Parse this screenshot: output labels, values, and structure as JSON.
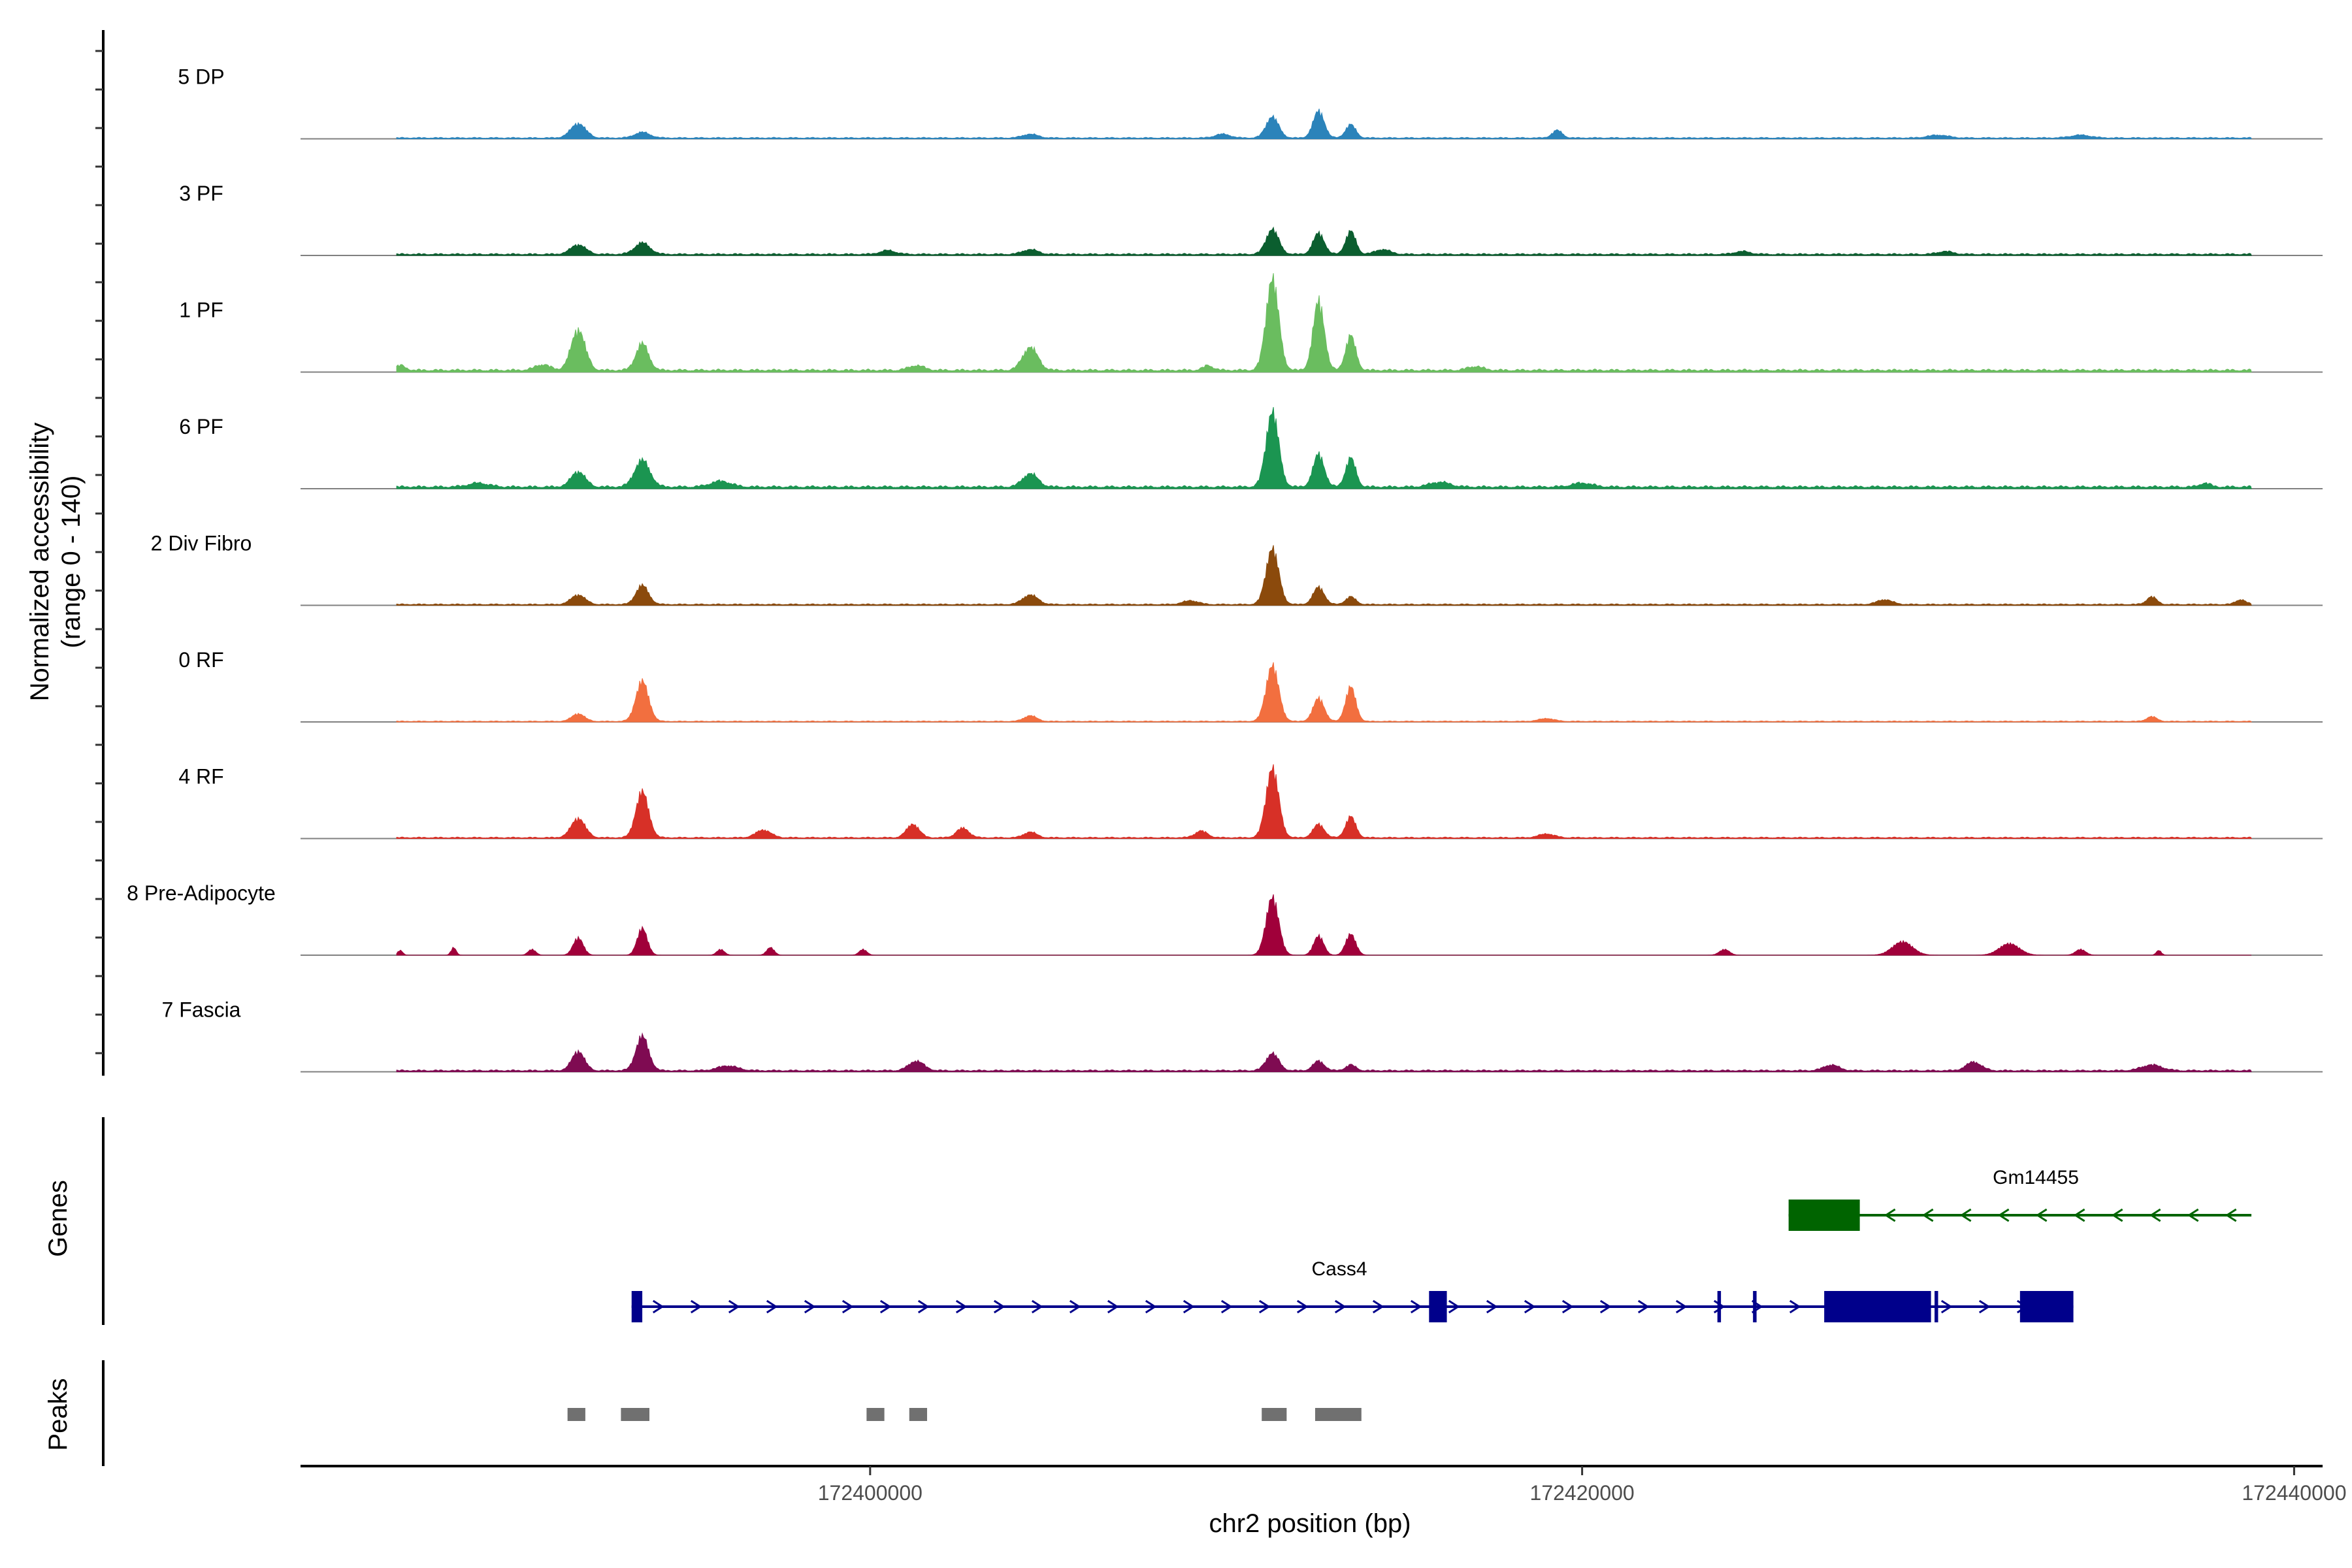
{
  "chart_data": {
    "type": "area",
    "ylabel_line1": "Normalized accessibility",
    "ylabel_line2": "(range 0 - 140)",
    "yrange": [
      0,
      140
    ],
    "xlabel": "chr2 position (bp)",
    "xlim": [
      172384000,
      172440800
    ],
    "x_ticks": [
      172400000,
      172420000,
      172440000
    ],
    "x_tick_labels": [
      "172400000",
      "172420000",
      "172440000"
    ],
    "track_range_bp": [
      172386700,
      172438800
    ],
    "series": [
      {
        "name": "5 DP",
        "color": "#2b83ba",
        "peaks": [
          [
            172391800,
            15,
            300
          ],
          [
            172411300,
            22,
            250
          ],
          [
            172412600,
            28,
            220
          ],
          [
            172413500,
            14,
            200
          ],
          [
            172393600,
            6,
            300
          ],
          [
            172419300,
            8,
            200
          ],
          [
            172404500,
            4,
            300
          ],
          [
            172409900,
            4,
            300
          ],
          [
            172430000,
            3,
            400
          ],
          [
            172434000,
            3,
            400
          ]
        ],
        "base": 1.5
      },
      {
        "name": "3 PF",
        "color": "#0b5e2f",
        "peaks": [
          [
            172391800,
            10,
            300
          ],
          [
            172393600,
            12,
            300
          ],
          [
            172411300,
            26,
            250
          ],
          [
            172412600,
            22,
            220
          ],
          [
            172413500,
            24,
            200
          ],
          [
            172404500,
            5,
            300
          ],
          [
            172400500,
            4,
            300
          ],
          [
            172414400,
            5,
            300
          ],
          [
            172424500,
            3,
            300
          ],
          [
            172430200,
            3,
            300
          ]
        ],
        "base": 2
      },
      {
        "name": "1 PF",
        "color": "#6abd5f",
        "peaks": [
          [
            172391800,
            42,
            280
          ],
          [
            172393600,
            28,
            250
          ],
          [
            172390800,
            6,
            300
          ],
          [
            172404500,
            24,
            300
          ],
          [
            172411300,
            95,
            250
          ],
          [
            172412600,
            72,
            220
          ],
          [
            172413500,
            36,
            200
          ],
          [
            172401300,
            5,
            300
          ],
          [
            172386800,
            5,
            200
          ],
          [
            172409500,
            5,
            200
          ],
          [
            172417000,
            4,
            300
          ]
        ],
        "base": 3
      },
      {
        "name": "6 PF",
        "color": "#1b9551",
        "peaks": [
          [
            172391800,
            16,
            280
          ],
          [
            172393600,
            28,
            300
          ],
          [
            172404500,
            14,
            300
          ],
          [
            172411300,
            78,
            250
          ],
          [
            172412600,
            34,
            220
          ],
          [
            172413500,
            30,
            200
          ],
          [
            172395800,
            6,
            400
          ],
          [
            172389000,
            4,
            400
          ],
          [
            172416000,
            5,
            400
          ],
          [
            172420000,
            4,
            400
          ],
          [
            172437500,
            4,
            200
          ]
        ],
        "base": 3
      },
      {
        "name": "2 Div Fibro",
        "color": "#8b4a0c",
        "peaks": [
          [
            172391800,
            10,
            280
          ],
          [
            172393600,
            20,
            250
          ],
          [
            172404500,
            10,
            300
          ],
          [
            172411300,
            58,
            250
          ],
          [
            172412600,
            18,
            220
          ],
          [
            172413500,
            8,
            200
          ],
          [
            172409000,
            4,
            300
          ],
          [
            172428500,
            5,
            300
          ],
          [
            172436000,
            8,
            200
          ],
          [
            172438500,
            5,
            200
          ]
        ],
        "base": 1.5
      },
      {
        "name": "0 RF",
        "color": "#f26f3f",
        "peaks": [
          [
            172391800,
            8,
            250
          ],
          [
            172393600,
            42,
            250
          ],
          [
            172404500,
            6,
            250
          ],
          [
            172411300,
            58,
            250
          ],
          [
            172412600,
            24,
            220
          ],
          [
            172413500,
            36,
            200
          ],
          [
            172436000,
            5,
            200
          ],
          [
            172419000,
            3,
            300
          ]
        ],
        "base": 1
      },
      {
        "name": "4 RF",
        "color": "#d73027",
        "peaks": [
          [
            172391800,
            20,
            280
          ],
          [
            172393600,
            48,
            250
          ],
          [
            172397000,
            8,
            300
          ],
          [
            172401200,
            14,
            250
          ],
          [
            172402600,
            10,
            250
          ],
          [
            172404500,
            6,
            250
          ],
          [
            172409300,
            7,
            250
          ],
          [
            172411300,
            72,
            250
          ],
          [
            172412600,
            14,
            220
          ],
          [
            172413500,
            22,
            200
          ],
          [
            172419000,
            4,
            300
          ]
        ],
        "base": 1.5
      },
      {
        "name": "8 Pre-Adipocyte",
        "color": "#a0003a",
        "peaks": [
          [
            172386800,
            5,
            100
          ],
          [
            172388300,
            8,
            100
          ],
          [
            172390500,
            6,
            150
          ],
          [
            172391800,
            18,
            200
          ],
          [
            172393600,
            28,
            200
          ],
          [
            172395800,
            6,
            150
          ],
          [
            172397200,
            8,
            150
          ],
          [
            172399800,
            6,
            150
          ],
          [
            172411300,
            60,
            250
          ],
          [
            172412600,
            20,
            200
          ],
          [
            172413500,
            22,
            200
          ],
          [
            172424000,
            6,
            200
          ],
          [
            172429000,
            14,
            400
          ],
          [
            172432000,
            12,
            400
          ],
          [
            172434000,
            6,
            200
          ],
          [
            172436200,
            5,
            100
          ]
        ],
        "base": 0
      },
      {
        "name": "7 Fascia",
        "color": "#7f0b52",
        "peaks": [
          [
            172391800,
            20,
            250
          ],
          [
            172393600,
            36,
            250
          ],
          [
            172401300,
            10,
            300
          ],
          [
            172411300,
            18,
            250
          ],
          [
            172412600,
            10,
            220
          ],
          [
            172413500,
            6,
            200
          ],
          [
            172396000,
            5,
            400
          ],
          [
            172427000,
            6,
            300
          ],
          [
            172431000,
            9,
            300
          ],
          [
            172436000,
            6,
            400
          ]
        ],
        "base": 2
      }
    ],
    "genes_label": "Genes",
    "genes": [
      {
        "name": "Gm14455",
        "strand": "-",
        "color": "#006400",
        "start": 172425800,
        "end": 172438800,
        "exons": [
          [
            172425800,
            172427800
          ]
        ],
        "row": 0
      },
      {
        "name": "Cass4",
        "strand": "+",
        "color": "#00008b",
        "start": 172393300,
        "end": 172433800,
        "exons": [
          [
            172393300,
            172393600
          ],
          [
            172415700,
            172416200
          ],
          [
            172423800,
            172423900
          ],
          [
            172424800,
            172424900
          ],
          [
            172426800,
            172429800
          ],
          [
            172429900,
            172430000
          ],
          [
            172432300,
            172433800
          ]
        ],
        "row": 1
      }
    ],
    "peaks_label": "Peaks",
    "peak_regions": [
      [
        172391500,
        172392000
      ],
      [
        172393000,
        172393800
      ],
      [
        172399900,
        172400400
      ],
      [
        172401100,
        172401600
      ],
      [
        172411000,
        172411700
      ],
      [
        172412500,
        172413800
      ]
    ]
  }
}
